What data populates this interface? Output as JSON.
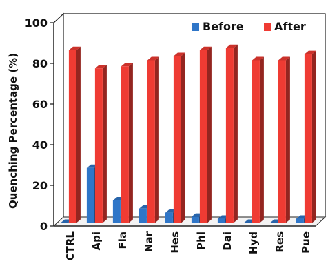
{
  "chart_data": {
    "type": "bar",
    "ylabel": "Quenching  Percentage (%)",
    "xlabel": "",
    "ylim": [
      0,
      100
    ],
    "yticks": [
      0,
      20,
      40,
      60,
      80,
      100
    ],
    "grid": false,
    "legend_position": "top-right",
    "categories": [
      "CTRL",
      "Api",
      "Fla",
      "Nar",
      "Hes",
      "Phl",
      "Dai",
      "Hyd",
      "Res",
      "Pue"
    ],
    "series": [
      {
        "name": "Before",
        "color": "#2f76c8",
        "values": [
          0,
          27,
          11,
          7,
          5,
          3,
          2,
          0,
          0,
          2
        ]
      },
      {
        "name": "After",
        "color": "#ef3b33",
        "values": [
          85,
          76,
          77,
          80,
          82,
          85,
          86,
          80,
          80,
          83
        ]
      }
    ]
  }
}
